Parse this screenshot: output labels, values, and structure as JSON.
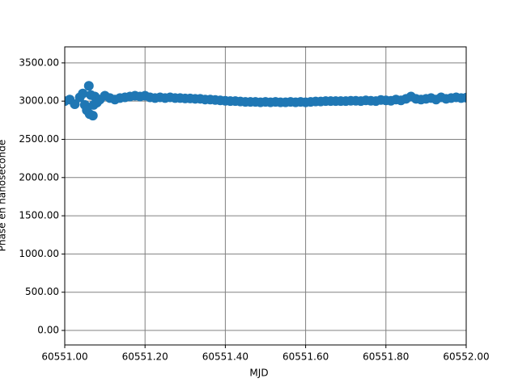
{
  "chart_data": {
    "type": "scatter",
    "xlabel": "MJD",
    "ylabel": "Phase en nanoseconde",
    "color": "#1f77b4",
    "grid": true,
    "xlim": [
      60551.0,
      60552.0
    ],
    "ylim": [
      -190,
      3710
    ],
    "xticks": [
      {
        "value": 60551.0,
        "label": "60551.00"
      },
      {
        "value": 60551.2,
        "label": "60551.20"
      },
      {
        "value": 60551.4,
        "label": "60551.40"
      },
      {
        "value": 60551.6,
        "label": "60551.60"
      },
      {
        "value": 60551.8,
        "label": "60551.80"
      },
      {
        "value": 60552.0,
        "label": "60552.00"
      }
    ],
    "yticks": [
      {
        "value": 0,
        "label": "0.00"
      },
      {
        "value": 500,
        "label": "500.00"
      },
      {
        "value": 1000,
        "label": "1000.00"
      },
      {
        "value": 1500,
        "label": "1500.00"
      },
      {
        "value": 2000,
        "label": "2000.00"
      },
      {
        "value": 2500,
        "label": "2500.00"
      },
      {
        "value": 3000,
        "label": "3000.00"
      },
      {
        "value": 3500,
        "label": "3500.00"
      }
    ],
    "x": [
      60551.0,
      60551.0125,
      60551.025,
      60551.0375,
      60551.045,
      60551.05,
      60551.055,
      60551.06,
      60551.062,
      60551.065,
      60551.07,
      60551.072,
      60551.075,
      60551.08,
      60551.0875,
      60551.1,
      60551.1125,
      60551.125,
      60551.1375,
      60551.15,
      60551.1625,
      60551.175,
      60551.1875,
      60551.2,
      60551.2125,
      60551.225,
      60551.2375,
      60551.25,
      60551.2625,
      60551.275,
      60551.2875,
      60551.3,
      60551.3125,
      60551.325,
      60551.3375,
      60551.35,
      60551.3625,
      60551.375,
      60551.3875,
      60551.4,
      60551.4125,
      60551.425,
      60551.4375,
      60551.45,
      60551.4625,
      60551.475,
      60551.4875,
      60551.5,
      60551.5125,
      60551.525,
      60551.5375,
      60551.55,
      60551.5625,
      60551.575,
      60551.5875,
      60551.6,
      60551.6125,
      60551.625,
      60551.6375,
      60551.65,
      60551.6625,
      60551.675,
      60551.6875,
      60551.7,
      60551.7125,
      60551.725,
      60551.7375,
      60551.75,
      60551.7625,
      60551.775,
      60551.7875,
      60551.8,
      60551.8125,
      60551.825,
      60551.8375,
      60551.85,
      60551.8625,
      60551.875,
      60551.8875,
      60551.9,
      60551.9125,
      60551.925,
      60551.9375,
      60551.95,
      60551.9625,
      60551.975,
      60551.9875,
      60552.0
    ],
    "values": [
      3000,
      3020,
      2960,
      3050,
      3100,
      2950,
      2880,
      3200,
      2830,
      3080,
      2810,
      2950,
      3060,
      2980,
      3020,
      3070,
      3040,
      3020,
      3040,
      3050,
      3060,
      3070,
      3060,
      3070,
      3050,
      3040,
      3050,
      3040,
      3050,
      3040,
      3040,
      3035,
      3035,
      3030,
      3030,
      3020,
      3020,
      3015,
      3010,
      3005,
      3000,
      3000,
      2995,
      2990,
      2990,
      2990,
      2985,
      2990,
      2985,
      2990,
      2985,
      2985,
      2990,
      2985,
      2990,
      2985,
      2990,
      2995,
      2995,
      3000,
      3000,
      3000,
      3000,
      3000,
      3005,
      3005,
      3000,
      3010,
      3005,
      3000,
      3015,
      3010,
      3005,
      3020,
      3010,
      3030,
      3060,
      3030,
      3020,
      3030,
      3040,
      3020,
      3050,
      3030,
      3040,
      3050,
      3040,
      3045
    ]
  }
}
